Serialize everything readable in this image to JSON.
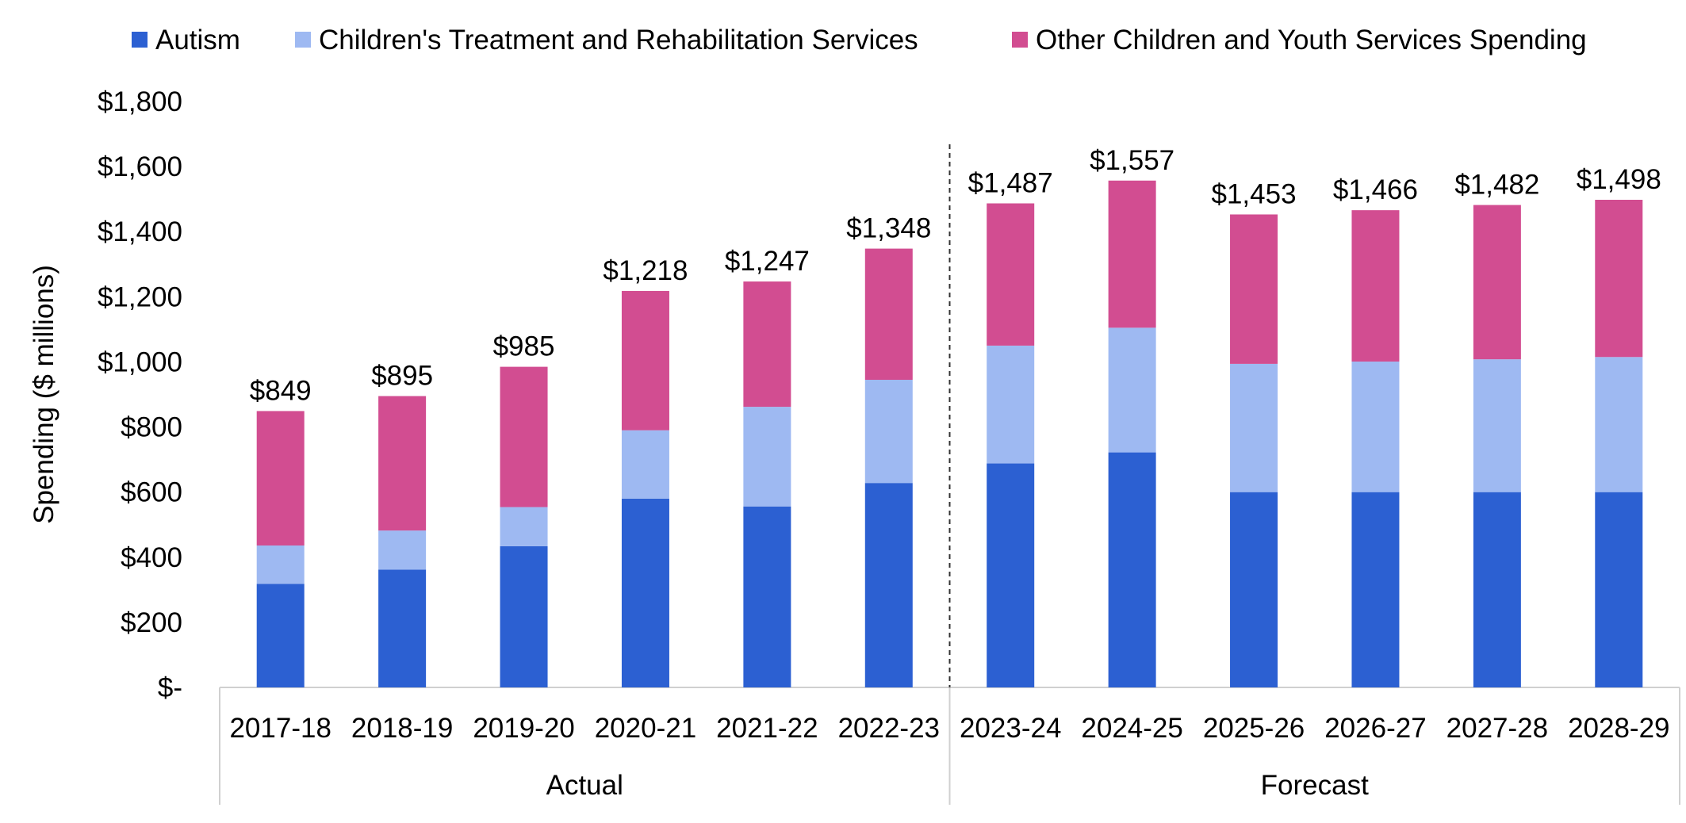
{
  "chart_data": {
    "type": "bar",
    "stacked": true,
    "ylabel": "Spending ($ millions)",
    "ylim": [
      0,
      1800
    ],
    "yticks": [
      0,
      200,
      400,
      600,
      800,
      1000,
      1200,
      1400,
      1600,
      1800
    ],
    "ytick_labels": [
      "$-",
      "$200",
      "$400",
      "$600",
      "$800",
      "$1,000",
      "$1,200",
      "$1,400",
      "$1,600",
      "$1,800"
    ],
    "categories": [
      "2017-18",
      "2018-19",
      "2019-20",
      "2020-21",
      "2021-22",
      "2022-23",
      "2023-24",
      "2024-25",
      "2025-26",
      "2026-27",
      "2027-28",
      "2028-29"
    ],
    "groups": [
      {
        "label": "Actual",
        "count": 6
      },
      {
        "label": "Forecast",
        "count": 6
      }
    ],
    "series": [
      {
        "name": "Autism",
        "color": "#2c60d2",
        "values": [
          318,
          362,
          434,
          580,
          556,
          628,
          688,
          722,
          600,
          600,
          600,
          600
        ]
      },
      {
        "name": "Children's Treatment and Rehabilitation Services",
        "color": "#9eb9f2",
        "values": [
          118,
          120,
          120,
          210,
          306,
          317,
          362,
          383,
          394,
          401,
          408,
          415
        ]
      },
      {
        "name": "Other Children and Youth Services Spending",
        "color": "#d24d91",
        "values": [
          413,
          413,
          431,
          428,
          385,
          403,
          437,
          452,
          459,
          465,
          474,
          483
        ]
      }
    ],
    "totals": [
      849,
      895,
      985,
      1218,
      1247,
      1348,
      1487,
      1557,
      1453,
      1466,
      1482,
      1498
    ],
    "total_labels": [
      "$849",
      "$895",
      "$985",
      "$1,218",
      "$1,247",
      "$1,348",
      "$1,487",
      "$1,557",
      "$1,453",
      "$1,466",
      "$1,482",
      "$1,498"
    ],
    "legend_position": "top",
    "grid": false,
    "divider_after_category": "2022-23"
  }
}
